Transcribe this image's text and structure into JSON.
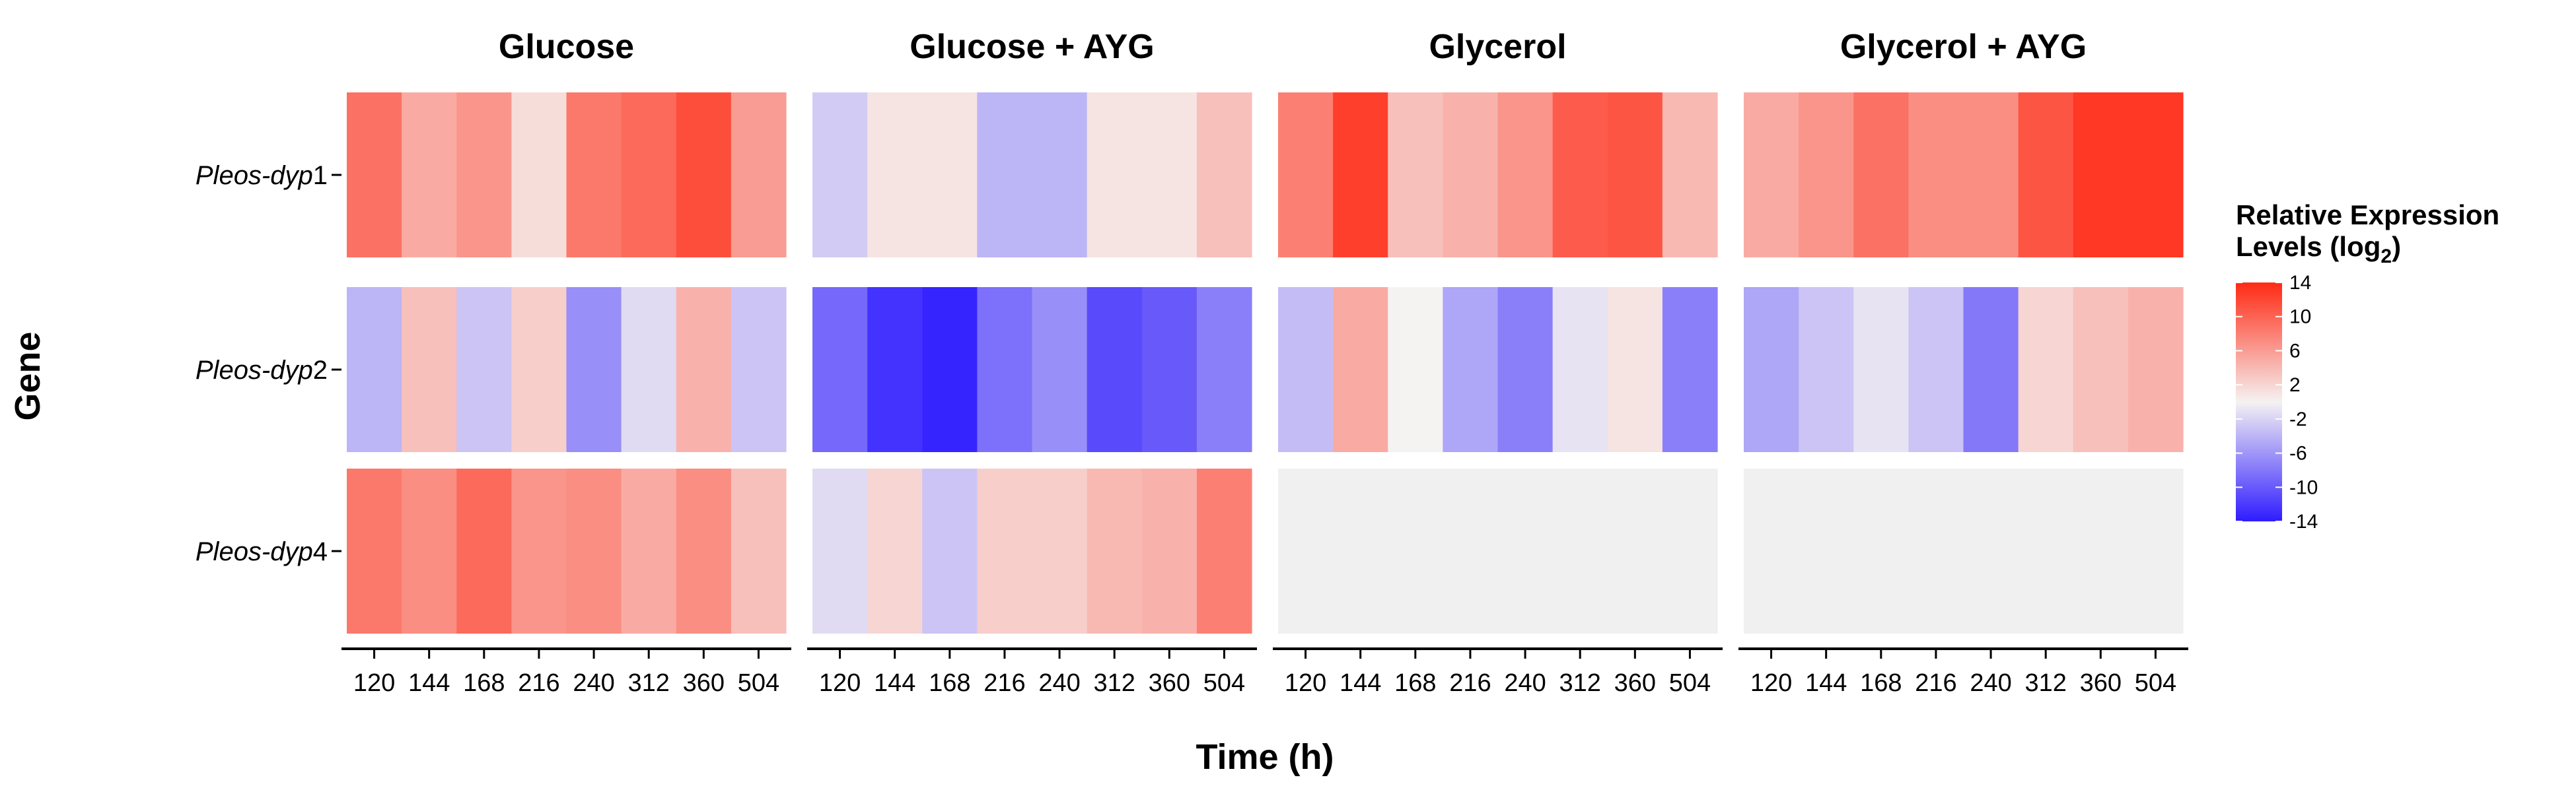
{
  "chart_data": {
    "type": "heatmap",
    "xlabel": "Time (h)",
    "ylabel": "Gene",
    "x": [
      "120",
      "144",
      "168",
      "216",
      "240",
      "312",
      "360",
      "504"
    ],
    "genes": [
      {
        "prefix": "Pleos-dyp",
        "suffix": "1"
      },
      {
        "prefix": "Pleos-dyp",
        "suffix": "2"
      },
      {
        "prefix": "Pleos-dyp",
        "suffix": "4"
      }
    ],
    "panels": [
      {
        "title": "Glucose",
        "values": [
          [
            9,
            5,
            6.5,
            1.5,
            8.5,
            9.5,
            11.5,
            6
          ],
          [
            -4,
            3.5,
            -3,
            2.5,
            -6.5,
            -1.5,
            4.5,
            -3
          ],
          [
            8.5,
            7,
            9.5,
            6.5,
            7,
            5,
            7,
            3.5
          ]
        ]
      },
      {
        "title": "Glucose + AYG",
        "values": [
          [
            -2.5,
            1,
            1,
            -4,
            -4,
            1,
            1,
            3.5
          ],
          [
            -9,
            -12.5,
            -13.5,
            -8.5,
            -6.5,
            -11,
            -10,
            -7.5
          ],
          [
            -1.5,
            2,
            -3,
            2.5,
            2.5,
            4,
            4.5,
            8
          ]
        ]
      },
      {
        "title": "Glycerol",
        "values": [
          [
            8,
            12.5,
            3.5,
            4.5,
            6.5,
            10.5,
            11,
            4
          ],
          [
            -3.5,
            5,
            0,
            -5,
            -7.5,
            -1,
            1,
            -7.5
          ],
          [
            null,
            null,
            null,
            null,
            null,
            null,
            null,
            null
          ]
        ]
      },
      {
        "title": "Glycerol + AYG",
        "values": [
          [
            5,
            6.5,
            9,
            7,
            7,
            11,
            13,
            13
          ],
          [
            -5,
            -3,
            -1,
            -3,
            -8,
            2,
            3.5,
            4.5
          ],
          [
            null,
            null,
            null,
            null,
            null,
            null,
            null,
            null
          ]
        ]
      }
    ],
    "legend": {
      "title_line1": "Relative Expression",
      "title_line2_main": "Levels (log",
      "title_line2_sub": "2",
      "title_line2_end": ")",
      "ticks": [
        14,
        10,
        6,
        2,
        -2,
        -6,
        -10,
        -14
      ],
      "range": [
        -14,
        14
      ],
      "placement": "right"
    },
    "colors": {
      "low": "#2f1cff",
      "mid": "#f5f2f2",
      "high": "#ff2a14",
      "missing": "#f0f0f0"
    }
  }
}
